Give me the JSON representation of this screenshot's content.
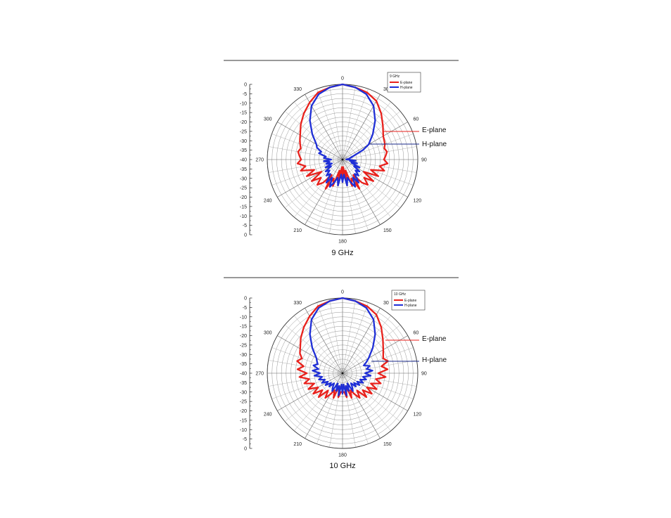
{
  "chart_data": [
    {
      "type": "line",
      "subtype": "polar",
      "title": "9 GHz",
      "legend_title": "9 GHz",
      "legend_position": "top-right",
      "radial_axis": {
        "range": [
          -40,
          0
        ],
        "ticks": [
          "0",
          "-5",
          "-10",
          "-15",
          "-20",
          "-25",
          "-30",
          "-35",
          "-40",
          "-35",
          "-30",
          "-25",
          "-20",
          "-15",
          "-10",
          "-5",
          "0"
        ]
      },
      "angular_axis": {
        "range": [
          0,
          360
        ],
        "tick_labels": [
          "0",
          "30",
          "60",
          "90",
          "120",
          "150",
          "180",
          "210",
          "240",
          "270",
          "300",
          "330"
        ]
      },
      "grid": true,
      "annotations": [
        "E-plane",
        "H-plane"
      ],
      "series": [
        {
          "name": "E-plane",
          "color": "#e8211c",
          "angles": [
            0,
            10,
            20,
            30,
            40,
            50,
            60,
            70,
            75,
            80,
            85,
            90,
            95,
            100,
            105,
            110,
            115,
            120,
            125,
            130,
            135,
            140,
            145,
            150,
            155,
            160,
            165,
            170,
            175,
            180,
            185,
            190,
            195,
            200,
            205,
            210,
            215,
            220,
            225,
            230,
            235,
            240,
            245,
            250,
            255,
            260,
            265,
            270,
            275,
            280,
            285,
            290,
            295,
            300,
            310,
            320,
            330,
            340,
            350
          ],
          "values": [
            0,
            -1,
            -2,
            -4,
            -8,
            -12,
            -15,
            -16,
            -17,
            -16,
            -17,
            -18,
            -16,
            -20,
            -17,
            -24,
            -19,
            -27,
            -20,
            -25,
            -21,
            -24,
            -30,
            -22,
            -29,
            -25,
            -34,
            -26,
            -36,
            -28,
            -36,
            -26,
            -34,
            -25,
            -29,
            -22,
            -30,
            -24,
            -21,
            -25,
            -20,
            -27,
            -19,
            -24,
            -17,
            -20,
            -16,
            -18,
            -17,
            -16,
            -17,
            -16,
            -15,
            -14,
            -11,
            -8,
            -5,
            -2,
            -1
          ]
        },
        {
          "name": "H-plane",
          "color": "#1f2fd6",
          "angles": [
            0,
            10,
            20,
            30,
            40,
            50,
            60,
            65,
            70,
            75,
            80,
            85,
            88,
            90,
            92,
            95,
            100,
            105,
            110,
            115,
            120,
            125,
            130,
            135,
            140,
            145,
            150,
            155,
            160,
            165,
            170,
            175,
            180,
            185,
            190,
            195,
            200,
            205,
            210,
            215,
            220,
            225,
            230,
            235,
            240,
            245,
            250,
            255,
            260,
            265,
            270,
            275,
            280,
            285,
            290,
            295,
            300,
            310,
            320,
            330,
            340,
            350
          ],
          "values": [
            0,
            -1,
            -3,
            -7,
            -13,
            -19,
            -24,
            -28,
            -33,
            -35,
            -36,
            -37,
            -38,
            -37,
            -36,
            -33,
            -36,
            -32,
            -35,
            -30,
            -33,
            -29,
            -31,
            -28,
            -30,
            -25,
            -29,
            -24,
            -27,
            -30,
            -26,
            -32,
            -28,
            -32,
            -26,
            -30,
            -27,
            -24,
            -29,
            -25,
            -30,
            -28,
            -31,
            -29,
            -33,
            -30,
            -34,
            -31,
            -33,
            -30,
            -34,
            -30,
            -31,
            -27,
            -28,
            -25,
            -24,
            -19,
            -13,
            -7,
            -3,
            -1
          ]
        }
      ]
    },
    {
      "type": "line",
      "subtype": "polar",
      "title": "10 GHz",
      "legend_title": "10 GHz",
      "legend_position": "top-right",
      "radial_axis": {
        "range": [
          -40,
          0
        ],
        "ticks": [
          "0",
          "-5",
          "-10",
          "-15",
          "-20",
          "-25",
          "-30",
          "-35",
          "-40",
          "-35",
          "-30",
          "-25",
          "-20",
          "-15",
          "-10",
          "-5",
          "0"
        ]
      },
      "angular_axis": {
        "range": [
          0,
          360
        ],
        "tick_labels": [
          "0",
          "30",
          "60",
          "90",
          "120",
          "150",
          "180",
          "210",
          "240",
          "270",
          "300",
          "330"
        ]
      },
      "grid": true,
      "annotations": [
        "E-plane",
        "H-plane"
      ],
      "series": [
        {
          "name": "E-plane",
          "color": "#e8211c",
          "angles": [
            0,
            10,
            20,
            30,
            40,
            50,
            60,
            70,
            75,
            80,
            85,
            90,
            95,
            100,
            105,
            110,
            115,
            120,
            125,
            130,
            135,
            140,
            145,
            150,
            155,
            160,
            165,
            170,
            175,
            180,
            185,
            190,
            195,
            200,
            205,
            210,
            215,
            220,
            225,
            230,
            235,
            240,
            245,
            250,
            255,
            260,
            265,
            270,
            275,
            280,
            285,
            290,
            295,
            300,
            310,
            320,
            330,
            340,
            350
          ],
          "values": [
            0,
            -1,
            -2,
            -4,
            -8,
            -12,
            -15,
            -17,
            -15,
            -19,
            -16,
            -21,
            -17,
            -22,
            -19,
            -24,
            -20,
            -25,
            -21,
            -26,
            -22,
            -28,
            -24,
            -27,
            -30,
            -26,
            -33,
            -27,
            -30,
            -30,
            -30,
            -27,
            -33,
            -26,
            -30,
            -27,
            -24,
            -28,
            -22,
            -26,
            -21,
            -25,
            -20,
            -24,
            -19,
            -22,
            -17,
            -21,
            -16,
            -19,
            -15,
            -17,
            -15,
            -14,
            -11,
            -8,
            -5,
            -2,
            -1
          ]
        },
        {
          "name": "H-plane",
          "color": "#1f2fd6",
          "angles": [
            0,
            10,
            20,
            30,
            40,
            50,
            60,
            65,
            70,
            75,
            80,
            85,
            90,
            95,
            100,
            105,
            110,
            115,
            120,
            125,
            130,
            135,
            140,
            145,
            150,
            155,
            160,
            165,
            170,
            175,
            180,
            185,
            190,
            195,
            200,
            205,
            210,
            215,
            220,
            225,
            230,
            235,
            240,
            245,
            250,
            255,
            260,
            265,
            270,
            275,
            280,
            285,
            290,
            295,
            300,
            310,
            320,
            330,
            340,
            350
          ],
          "values": [
            0,
            -1,
            -3,
            -7,
            -13,
            -19,
            -24,
            -26,
            -28,
            -25,
            -27,
            -24,
            -28,
            -25,
            -29,
            -27,
            -30,
            -28,
            -31,
            -29,
            -32,
            -30,
            -33,
            -31,
            -29,
            -34,
            -30,
            -33,
            -28,
            -34,
            -29,
            -34,
            -28,
            -33,
            -30,
            -34,
            -29,
            -31,
            -33,
            -30,
            -32,
            -29,
            -31,
            -28,
            -30,
            -27,
            -29,
            -25,
            -28,
            -24,
            -27,
            -24,
            -26,
            -25,
            -24,
            -19,
            -13,
            -7,
            -3,
            -1
          ]
        }
      ]
    }
  ]
}
